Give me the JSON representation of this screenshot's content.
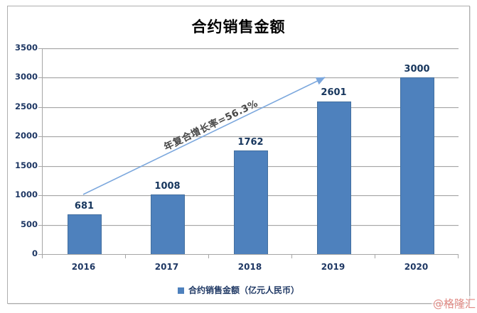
{
  "chart_data": {
    "type": "bar",
    "title": "合约销售金额",
    "categories": [
      "2016",
      "2017",
      "2018",
      "2019",
      "2020"
    ],
    "values": [
      681,
      1008,
      1762,
      2601,
      3000
    ],
    "series_name": "合约销售金额（亿元人民币）",
    "xlabel": "",
    "ylabel": "",
    "ylim": [
      0,
      3500
    ],
    "yticks": [
      0,
      500,
      1000,
      1500,
      2000,
      2500,
      3000,
      3500
    ],
    "grid": true,
    "data_labels_shown": true,
    "legend_position": "bottom",
    "bar_color": "#4e81bd",
    "annotation": {
      "text": "年复合增长率=56.3%",
      "shape": "arrow",
      "arrow_color": "#7ba7dd",
      "arrow_from_category": "2016",
      "arrow_to_category": "2019"
    }
  },
  "legend": {
    "label": "合约销售金额（亿元人民币）",
    "marker_color": "#4e81bd"
  },
  "watermark": {
    "text": "@格隆汇",
    "color": "#e08983"
  },
  "colors": {
    "bar": "#4e81bd",
    "gridline": "#a6a6a6",
    "axis_text": "#1f3864",
    "title_text": "#000000",
    "annotation_text": "#474747",
    "arrow": "#7ba7dd",
    "watermark": "#e08983",
    "frame_border": "#aeaeae"
  }
}
